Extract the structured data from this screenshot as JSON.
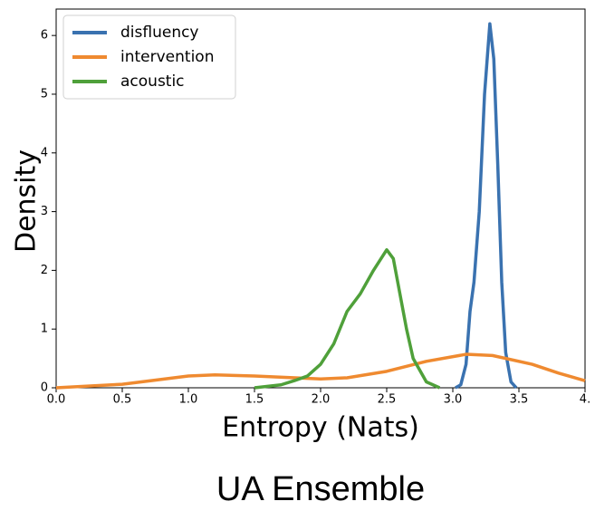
{
  "chart_data": {
    "type": "line",
    "caption": "UA Ensemble",
    "xlabel": "Entropy (Nats)",
    "ylabel": "Density",
    "xlim": [
      0,
      4
    ],
    "ylim": [
      0,
      6.45
    ],
    "xticks": [
      {
        "value": 0,
        "label": "0.0"
      },
      0.5,
      {
        "value": 1,
        "label": "1.0"
      },
      1.5,
      {
        "value": 2,
        "label": "2.0"
      },
      2.5,
      {
        "value": 3,
        "label": "3.0"
      },
      3.5,
      {
        "value": 4,
        "label": "4."
      }
    ],
    "yticks": [
      0,
      1,
      2,
      3,
      4,
      5,
      6
    ],
    "legend": "upper left",
    "series": [
      {
        "name": "disfluency",
        "color": "#3a72b0",
        "x": [
          3.02,
          3.06,
          3.1,
          3.13,
          3.16,
          3.2,
          3.24,
          3.28,
          3.31,
          3.34,
          3.37,
          3.4,
          3.44,
          3.48
        ],
        "values": [
          0,
          0.05,
          0.4,
          1.3,
          1.8,
          3.0,
          5.0,
          6.2,
          5.6,
          3.8,
          1.8,
          0.6,
          0.1,
          0
        ]
      },
      {
        "name": "intervention",
        "color": "#ef8a30",
        "x": [
          0,
          0.5,
          1.0,
          1.2,
          1.5,
          2.0,
          2.2,
          2.5,
          2.8,
          3.1,
          3.3,
          3.6,
          3.8,
          4.0
        ],
        "values": [
          0,
          0.06,
          0.2,
          0.22,
          0.2,
          0.15,
          0.17,
          0.28,
          0.45,
          0.57,
          0.55,
          0.4,
          0.25,
          0.12
        ]
      },
      {
        "name": "acoustic",
        "color": "#4fa03a",
        "x": [
          1.5,
          1.7,
          1.8,
          1.9,
          2.0,
          2.1,
          2.2,
          2.3,
          2.4,
          2.5,
          2.55,
          2.6,
          2.65,
          2.7,
          2.8,
          2.9
        ],
        "values": [
          0,
          0.05,
          0.12,
          0.2,
          0.4,
          0.75,
          1.3,
          1.6,
          2.0,
          2.35,
          2.2,
          1.6,
          1.0,
          0.5,
          0.1,
          0
        ]
      }
    ]
  }
}
